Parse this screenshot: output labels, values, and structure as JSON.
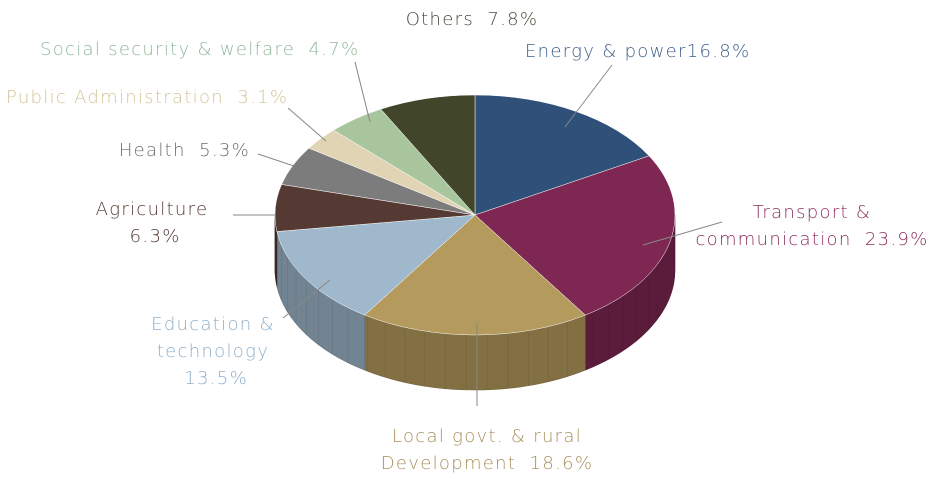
{
  "chart_data": {
    "type": "pie",
    "categories": [
      "Energy & power",
      "Transport & communication",
      "Local govt. & rural Development",
      "Education & technology",
      "Agriculture",
      "Health",
      "Public Administration",
      "Social security & welfare",
      "Others"
    ],
    "values": [
      16.8,
      23.9,
      18.6,
      13.5,
      6.3,
      5.3,
      3.1,
      4.7,
      7.8
    ],
    "value_labels": [
      "16.8%",
      "23.9%",
      "18.6%",
      "13.5%",
      "6.3%",
      "5.3%",
      "3.1%",
      "4.7%",
      "7.8%"
    ],
    "colors": [
      "#2f5079",
      "#7e2752",
      "#b49a5c",
      "#9fb8cb",
      "#553a33",
      "#7c7c7c",
      "#e0d4b4",
      "#a9c59e",
      "#41462a"
    ],
    "label_colors": [
      "#3d5f8a",
      "#8e2f5c",
      "#a8915c",
      "#8fafc8",
      "#553a33",
      "#6e6e6e",
      "#d3c49b",
      "#93b89c",
      "#4a4a3a"
    ]
  }
}
